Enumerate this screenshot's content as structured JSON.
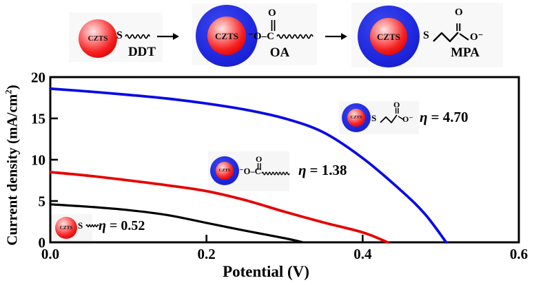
{
  "schematic": {
    "czts_label": "CZTS",
    "ddt": {
      "s": "S",
      "label": "DDT"
    },
    "oa": {
      "oc": "⁻O–C",
      "o_top": "O",
      "label": "OA"
    },
    "mpa": {
      "s": "S",
      "o_top": "O",
      "o_minus": "O⁻",
      "label": "MPA"
    }
  },
  "chart": {
    "ylabel_main": "Current density (mA/cm",
    "ylabel_sup": "2",
    "ylabel_close": ")",
    "xlabel": "Potential (V)",
    "annotations": [
      {
        "ligand": "DDT",
        "symbol": "η",
        "value": "= 0.52",
        "s": "S"
      },
      {
        "ligand": "OA",
        "symbol": "η",
        "value": "= 1.38",
        "oc": "⁻O–C",
        "o_top": "O"
      },
      {
        "ligand": "MPA",
        "symbol": "η",
        "value": "= 4.70",
        "s": "S",
        "o_top": "O",
        "o_minus": "O⁻"
      }
    ]
  },
  "chart_data": {
    "type": "line",
    "title": "",
    "xlabel": "Potential (V)",
    "ylabel": "Current density (mA/cm²)",
    "xlim": [
      0,
      0.6
    ],
    "ylim": [
      0,
      20
    ],
    "xticks": [
      0,
      0.2,
      0.4,
      0.6
    ],
    "xtick_labels": [
      "0.0",
      "0.2",
      "0.4",
      "0.6"
    ],
    "yticks": [
      0,
      5,
      10,
      15,
      20
    ],
    "ytick_labels": [
      "0",
      "5",
      "10",
      "15",
      "20"
    ],
    "grid": false,
    "legend_position": "none",
    "series": [
      {
        "name": "CZTS-DDT",
        "color": "#000000",
        "efficiency": 0.52,
        "jsc": 4.6,
        "voc": 0.324,
        "x": [
          0,
          0.05,
          0.1,
          0.15,
          0.2,
          0.25,
          0.3,
          0.324
        ],
        "y": [
          4.6,
          4.3,
          3.9,
          3.3,
          2.35,
          1.4,
          0.5,
          0
        ]
      },
      {
        "name": "CZTS-OA",
        "color": "#e60202",
        "efficiency": 1.38,
        "jsc": 8.5,
        "voc": 0.432,
        "x": [
          0,
          0.05,
          0.1,
          0.15,
          0.2,
          0.25,
          0.3,
          0.35,
          0.4,
          0.432
        ],
        "y": [
          8.5,
          8.05,
          7.5,
          6.9,
          6.2,
          5.1,
          3.7,
          2.4,
          1.2,
          0
        ]
      },
      {
        "name": "CZTS-MPA",
        "color": "#0a0ae8",
        "efficiency": 4.7,
        "jsc": 18.6,
        "voc": 0.507,
        "x": [
          0,
          0.05,
          0.1,
          0.15,
          0.2,
          0.25,
          0.3,
          0.35,
          0.4,
          0.45,
          0.48,
          0.507
        ],
        "y": [
          18.6,
          18.25,
          17.85,
          17.4,
          16.8,
          16.05,
          15.0,
          13.3,
          10.2,
          6.2,
          3.4,
          0
        ]
      }
    ]
  }
}
